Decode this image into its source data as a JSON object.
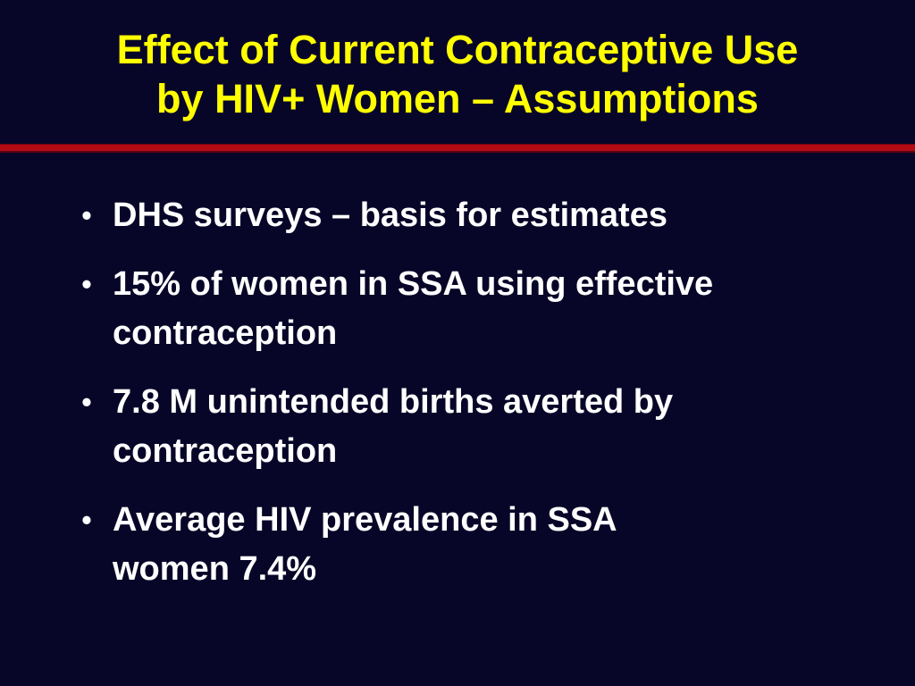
{
  "slide": {
    "title_lines": [
      "Effect of Current Contraceptive Use",
      "by HIV+ Women – Assumptions"
    ],
    "bullet_symbol": "•",
    "bullets": [
      {
        "lines": [
          "DHS surveys – basis for estimates"
        ]
      },
      {
        "lines": [
          "15% of women in SSA using effective",
          "contraception"
        ]
      },
      {
        "lines": [
          "7.8 M unintended births averted by",
          "contraception"
        ]
      },
      {
        "lines": [
          "Average HIV prevalence in SSA",
          "women 7.4%"
        ]
      }
    ]
  },
  "colors": {
    "background": "#080628",
    "title": "#FFFF00",
    "rule": "#B40A14",
    "text": "#FFFFFF"
  }
}
